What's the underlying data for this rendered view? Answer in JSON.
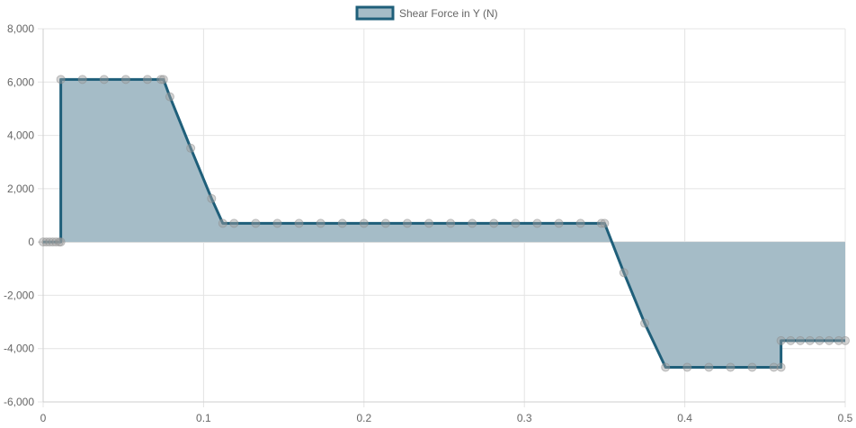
{
  "chart_data": {
    "type": "area",
    "series": [
      {
        "name": "Shear Force in Y (N)",
        "points": [
          [
            0.0,
            0
          ],
          [
            0.002,
            0
          ],
          [
            0.004,
            0
          ],
          [
            0.006,
            0
          ],
          [
            0.008,
            0
          ],
          [
            0.01,
            0
          ],
          [
            0.011,
            0
          ],
          [
            0.011,
            6100
          ],
          [
            0.0245,
            6100
          ],
          [
            0.038,
            6100
          ],
          [
            0.0515,
            6100
          ],
          [
            0.065,
            6100
          ],
          [
            0.0735,
            6100
          ],
          [
            0.075,
            6100
          ],
          [
            0.079,
            5450
          ],
          [
            0.092,
            3520
          ],
          [
            0.105,
            1630
          ],
          [
            0.112,
            700
          ],
          [
            0.119,
            700
          ],
          [
            0.1325,
            700
          ],
          [
            0.146,
            700
          ],
          [
            0.1595,
            700
          ],
          [
            0.173,
            700
          ],
          [
            0.1865,
            700
          ],
          [
            0.2,
            700
          ],
          [
            0.2135,
            700
          ],
          [
            0.227,
            700
          ],
          [
            0.2405,
            700
          ],
          [
            0.254,
            700
          ],
          [
            0.2675,
            700
          ],
          [
            0.281,
            700
          ],
          [
            0.2945,
            700
          ],
          [
            0.308,
            700
          ],
          [
            0.3215,
            700
          ],
          [
            0.335,
            700
          ],
          [
            0.348,
            700
          ],
          [
            0.35,
            700
          ],
          [
            0.362,
            -1150
          ],
          [
            0.375,
            -3050
          ],
          [
            0.388,
            -4700
          ],
          [
            0.4015,
            -4700
          ],
          [
            0.415,
            -4700
          ],
          [
            0.4285,
            -4700
          ],
          [
            0.442,
            -4700
          ],
          [
            0.4555,
            -4700
          ],
          [
            0.46,
            -4700
          ],
          [
            0.46,
            -3700
          ],
          [
            0.466,
            -3700
          ],
          [
            0.472,
            -3700
          ],
          [
            0.478,
            -3700
          ],
          [
            0.484,
            -3700
          ],
          [
            0.49,
            -3700
          ],
          [
            0.496,
            -3700
          ],
          [
            0.5,
            -3700
          ]
        ]
      }
    ],
    "x_ticks": [
      "0",
      "0.1",
      "0.2",
      "0.3",
      "0.4",
      "0.5"
    ],
    "x_tick_values": [
      0,
      0.1,
      0.2,
      0.3,
      0.4,
      0.5
    ],
    "y_ticks": [
      "8,000",
      "6,000",
      "4,000",
      "2,000",
      "0",
      "-2,000",
      "-4,000",
      "-6,000"
    ],
    "y_tick_values": [
      8000,
      6000,
      4000,
      2000,
      0,
      -2000,
      -4000,
      -6000
    ],
    "xlim": [
      0,
      0.5
    ],
    "ylim": [
      -6000,
      8000
    ],
    "grid": true,
    "legend_position": "top",
    "colors": {
      "line": "#1f5f7a",
      "fill": "#a5bcc7",
      "grid": "#e4e4e4",
      "zero_line": "#c8c8c8",
      "point": "#b8b8b8"
    }
  }
}
